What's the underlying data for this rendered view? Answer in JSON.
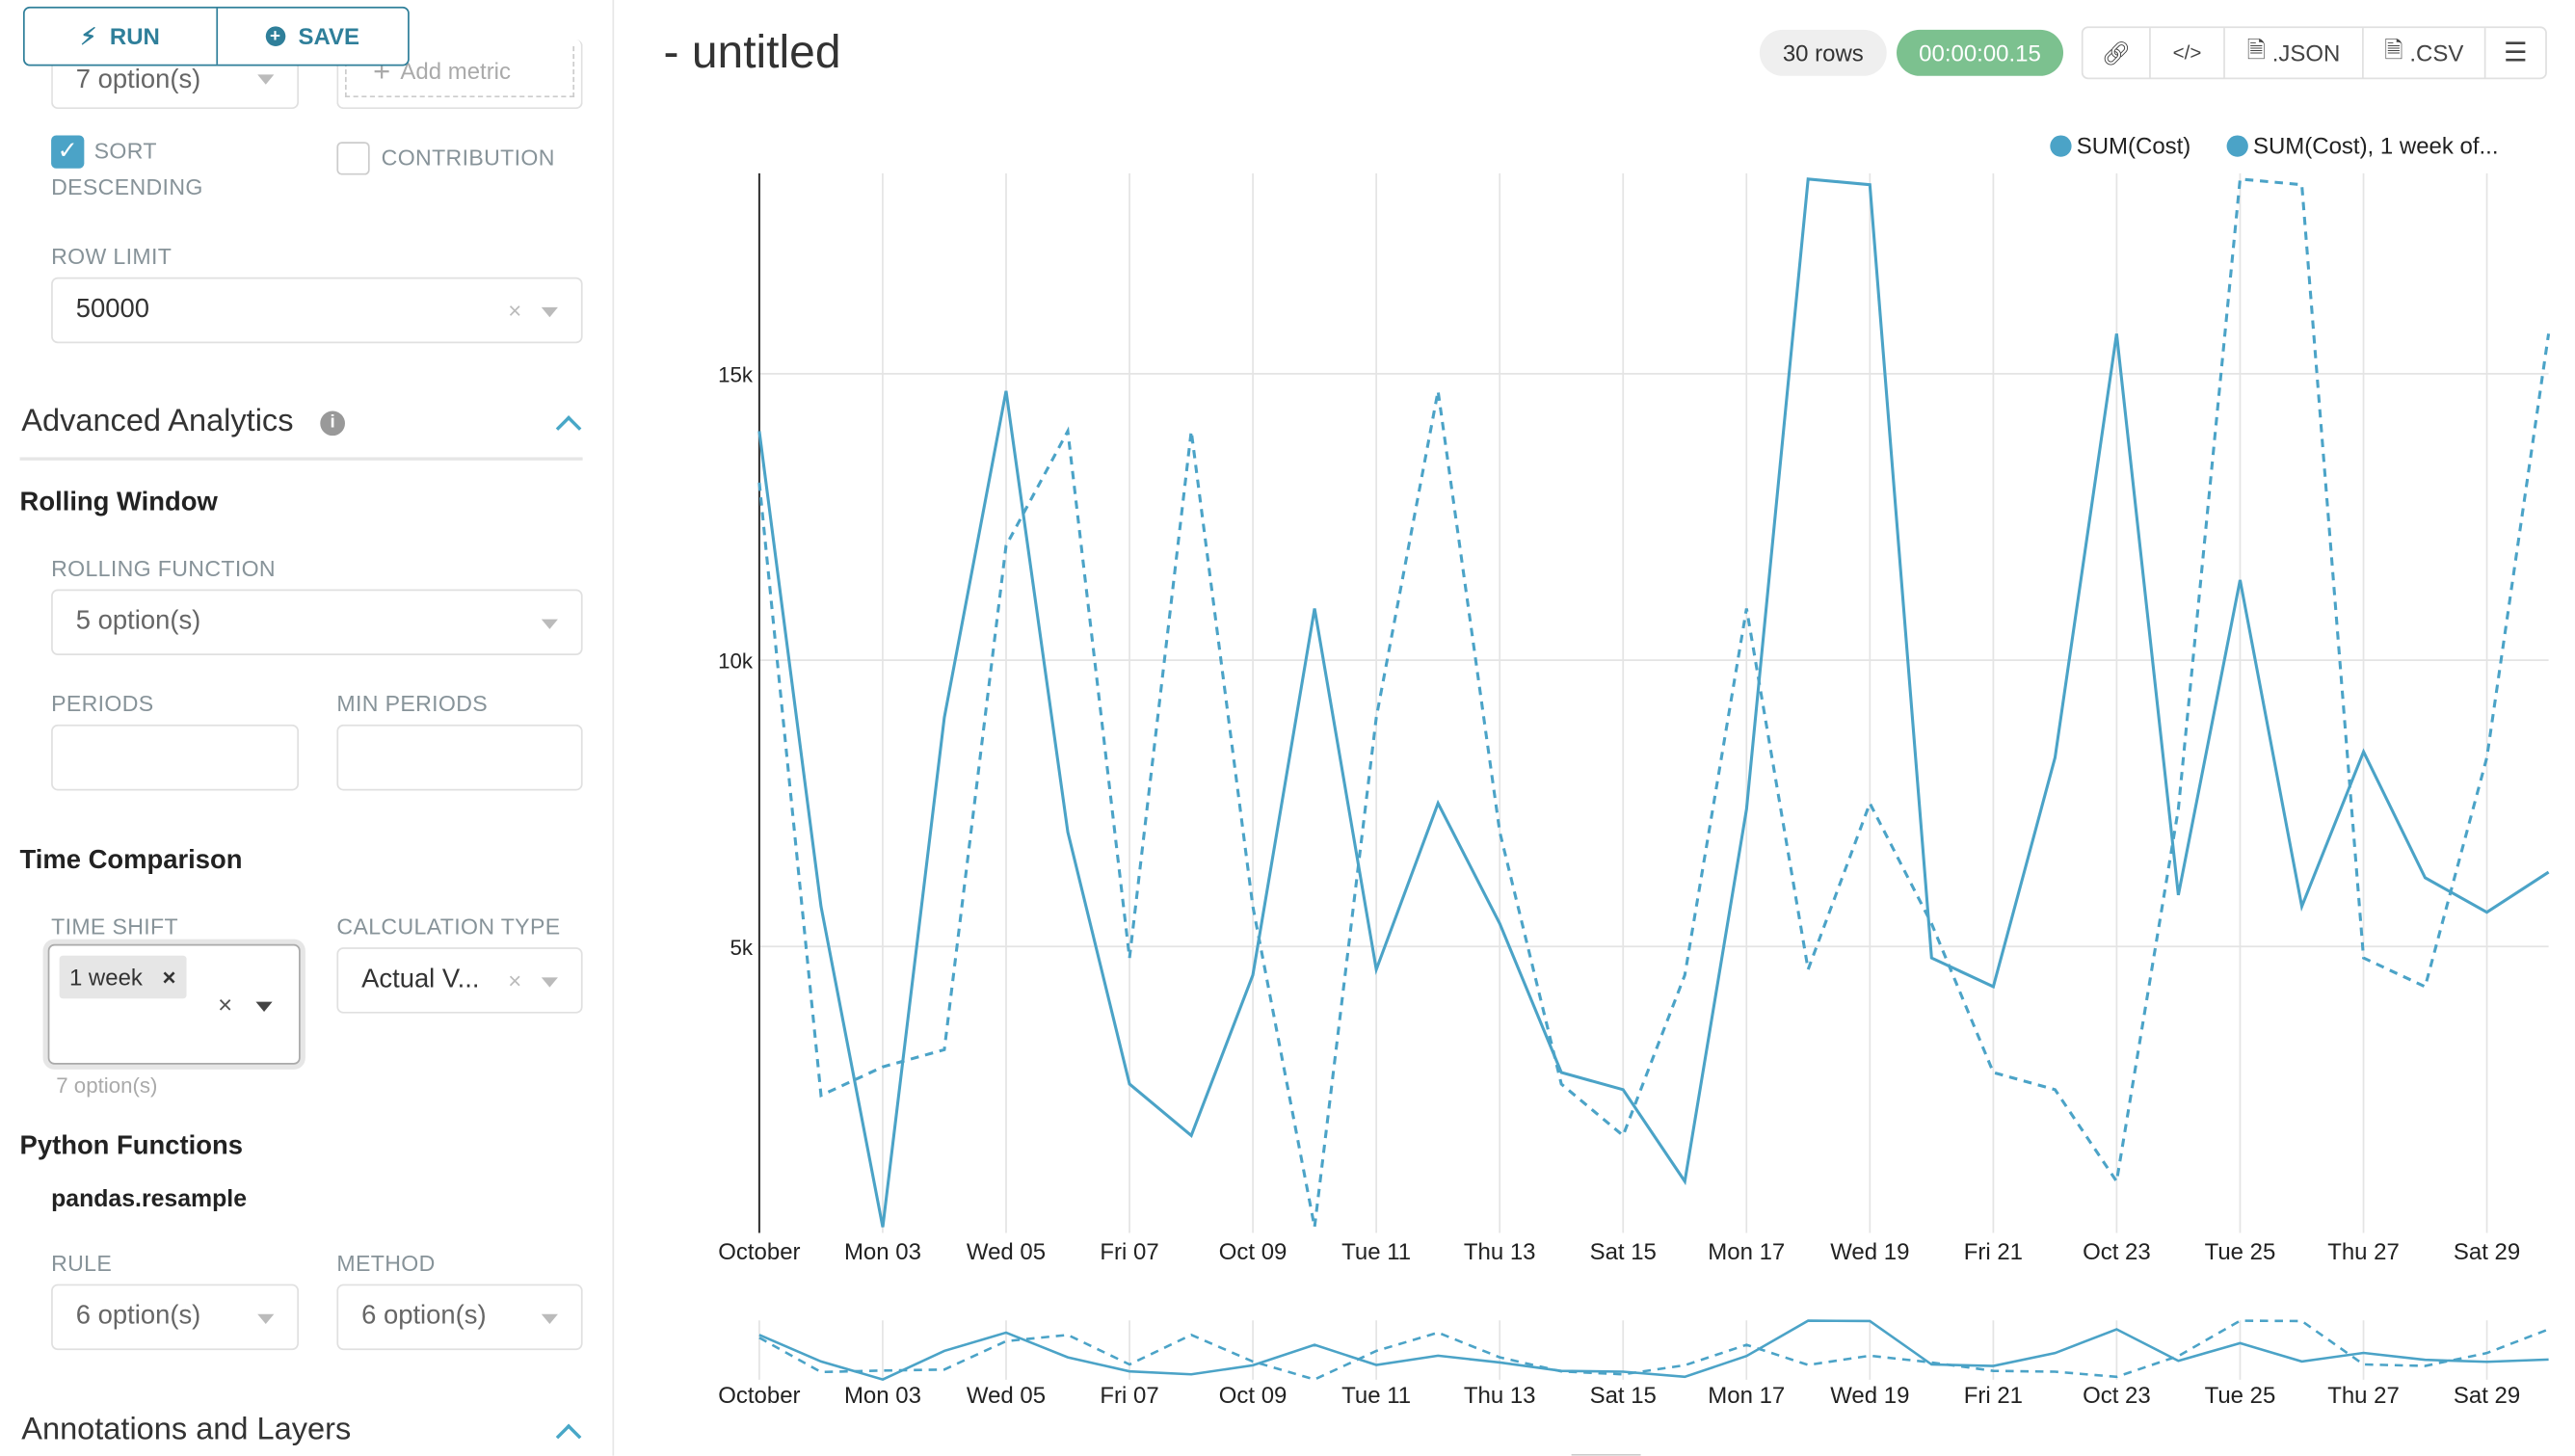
{
  "toolbar": {
    "run_label": "RUN",
    "save_label": "SAVE",
    "run_icon": "bolt-icon",
    "save_icon": "plus-circle-icon"
  },
  "query": {
    "top_select_placeholder": "7 option(s)",
    "add_metric_label": "Add metric",
    "sort_descending": {
      "label_line1": "SORT",
      "label_line2": "DESCENDING",
      "checked": true
    },
    "contribution": {
      "label": "CONTRIBUTION",
      "checked": false
    },
    "row_limit": {
      "label": "ROW LIMIT",
      "value": "50000"
    }
  },
  "advanced_analytics": {
    "title": "Advanced Analytics",
    "rolling_window": {
      "title": "Rolling Window",
      "function_label": "ROLLING FUNCTION",
      "function_placeholder": "5 option(s)",
      "periods_label": "PERIODS",
      "periods_value": "",
      "min_periods_label": "MIN PERIODS",
      "min_periods_value": ""
    },
    "time_comparison": {
      "title": "Time Comparison",
      "time_shift_label": "TIME SHIFT",
      "time_shift_tag": "1 week",
      "time_shift_hint": "7 option(s)",
      "calc_type_label": "CALCULATION TYPE",
      "calc_type_value": "Actual V..."
    },
    "python_functions": {
      "title": "Python Functions",
      "subtitle": "pandas.resample",
      "rule_label": "RULE",
      "rule_placeholder": "6 option(s)",
      "method_label": "METHOD",
      "method_placeholder": "6 option(s)"
    }
  },
  "annotations": {
    "title": "Annotations and Layers"
  },
  "header": {
    "title": "- untitled",
    "rows": "30 rows",
    "timer": "00:00:00.15",
    "json_label": ".JSON",
    "csv_label": ".CSV"
  },
  "colors": {
    "accent": "#2f7f9a",
    "series": "#4ba3c7",
    "timer": "#7cc18f",
    "checkbox": "#4ba3c7"
  },
  "chart_data": {
    "type": "line",
    "x": [
      "2016-10-01",
      "2016-10-02",
      "2016-10-03",
      "2016-10-04",
      "2016-10-05",
      "2016-10-06",
      "2016-10-07",
      "2016-10-08",
      "2016-10-09",
      "2016-10-10",
      "2016-10-11",
      "2016-10-12",
      "2016-10-13",
      "2016-10-14",
      "2016-10-15",
      "2016-10-16",
      "2016-10-17",
      "2016-10-18",
      "2016-10-19",
      "2016-10-20",
      "2016-10-21",
      "2016-10-22",
      "2016-10-23",
      "2016-10-24",
      "2016-10-25",
      "2016-10-26",
      "2016-10-27",
      "2016-10-28",
      "2016-10-29",
      "2016-10-30"
    ],
    "x_tick_labels": [
      "October",
      "Mon 03",
      "Wed 05",
      "Fri 07",
      "Oct 09",
      "Tue 11",
      "Thu 13",
      "Sat 15",
      "Mon 17",
      "Wed 19",
      "Fri 21",
      "Oct 23",
      "Tue 25",
      "Thu 27",
      "Sat 29"
    ],
    "y_tick_labels": [
      "5k",
      "10k",
      "15k"
    ],
    "y_ticks": [
      5000,
      10000,
      15000
    ],
    "ylim": [
      0,
      18500
    ],
    "grid": true,
    "legend_position": "top-right",
    "series": [
      {
        "name": "SUM(Cost)",
        "style": "solid",
        "values": [
          14000,
          5700,
          100,
          9000,
          14700,
          7000,
          2600,
          1700,
          4500,
          10900,
          4600,
          7500,
          5400,
          2800,
          2500,
          900,
          7400,
          18400,
          18300,
          4800,
          4300,
          8300,
          15700,
          5900,
          11400,
          5700,
          8400,
          6200,
          5600,
          6300
        ]
      },
      {
        "name": "SUM(Cost), 1 week of...",
        "style": "dashed",
        "values": [
          13100,
          2400,
          2900,
          3200,
          12000,
          14000,
          4800,
          14000,
          5700,
          100,
          9000,
          14700,
          7000,
          2600,
          1700,
          4500,
          10900,
          4600,
          7500,
          5400,
          2800,
          2500,
          900,
          7400,
          18400,
          18300,
          4800,
          4300,
          8300,
          15700
        ]
      }
    ]
  }
}
